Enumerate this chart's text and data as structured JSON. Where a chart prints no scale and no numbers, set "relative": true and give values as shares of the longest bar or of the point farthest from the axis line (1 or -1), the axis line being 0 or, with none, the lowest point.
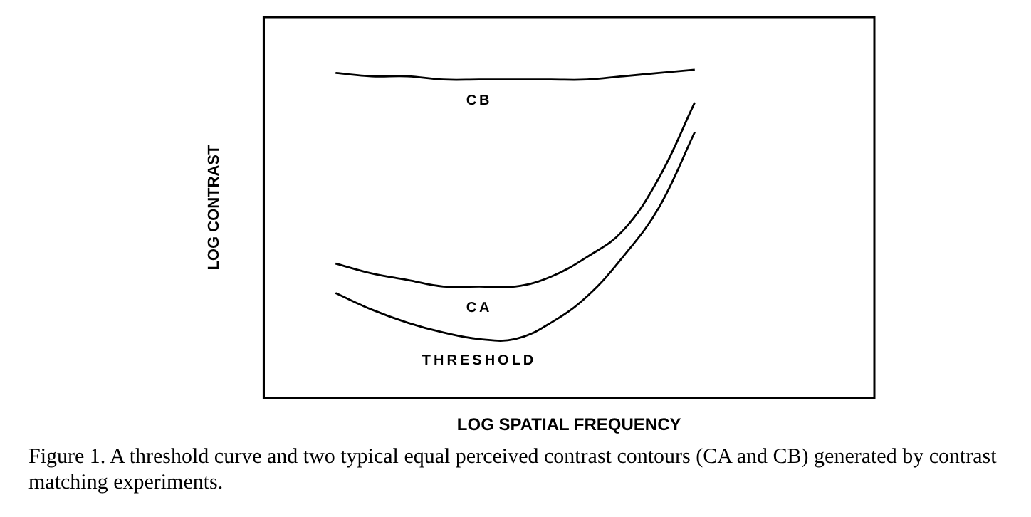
{
  "chart_data": {
    "type": "line",
    "relative": true,
    "xlabel": "LOG SPATIAL FREQUENCY",
    "ylabel": "LOG CONTRAST",
    "categories": [
      null,
      null,
      null,
      null,
      null,
      null,
      null,
      null,
      null,
      null,
      null,
      null,
      null,
      null,
      null,
      null,
      null,
      null
    ],
    "series": [
      {
        "name": "CB",
        "color": "#000000",
        "values": [
          null,
          null,
          0.99,
          0.98,
          0.98,
          0.97,
          0.97,
          0.97,
          0.97,
          0.97,
          0.98,
          0.99,
          1.0,
          null,
          null,
          null,
          null,
          null
        ]
      },
      {
        "name": "CA",
        "color": "#000000",
        "values": [
          null,
          null,
          0.41,
          0.38,
          0.36,
          0.34,
          0.34,
          0.34,
          0.37,
          0.43,
          0.51,
          0.67,
          0.9,
          null,
          null,
          null,
          null,
          null
        ]
      },
      {
        "name": "THRESHOLD",
        "color": "#000000",
        "values": [
          null,
          null,
          0.32,
          0.27,
          0.23,
          0.2,
          0.18,
          0.18,
          0.23,
          0.31,
          0.43,
          0.58,
          0.81,
          null,
          null,
          null,
          null,
          null
        ]
      }
    ],
    "grid": false,
    "legend": false,
    "marker": "none",
    "line_style": "solid",
    "annotations": [
      "Figure 1.  A threshold curve and two typical equal perceived contrast contours (CA and CB) generated by contrast matching experiments."
    ]
  }
}
